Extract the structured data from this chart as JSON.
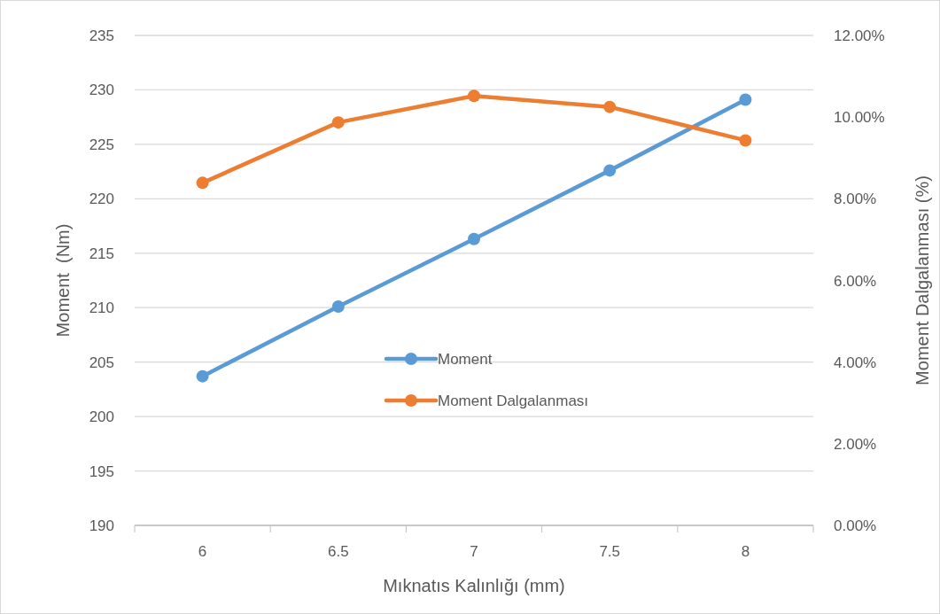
{
  "chart_data": {
    "type": "line",
    "xlabel": "Mıknatıs Kalınlığı (mm)",
    "ylabel": "Moment  (Nm)",
    "y2label": "Moment Dalgalanması (%)",
    "categories": [
      "6",
      "6.5",
      "7",
      "7.5",
      "8"
    ],
    "series": [
      {
        "name": "Moment",
        "color": "#5b9bd5",
        "values": [
          203.7,
          210.1,
          216.3,
          222.6,
          229.1
        ]
      },
      {
        "name": "Moment Dalgalanması",
        "color": "#ed7d31",
        "axis": "y2",
        "values": [
          8.39,
          9.87,
          10.52,
          10.25,
          9.43
        ]
      }
    ],
    "ylim": [
      190,
      235
    ],
    "yticks": [
      190,
      195,
      200,
      205,
      210,
      215,
      220,
      225,
      230,
      235
    ],
    "y2lim": [
      0,
      12
    ],
    "y2ticks": [
      {
        "value": 0,
        "label": "0.00%"
      },
      {
        "value": 2,
        "label": "2.00%"
      },
      {
        "value": 4,
        "label": "4.00%"
      },
      {
        "value": 6,
        "label": "6.00%"
      },
      {
        "value": 8,
        "label": "8.00%"
      },
      {
        "value": 10,
        "label": "10.00%"
      },
      {
        "value": 12,
        "label": "12.00%"
      }
    ],
    "grid": "y",
    "legend": "center",
    "marker": "circle",
    "line_style": "solid"
  }
}
